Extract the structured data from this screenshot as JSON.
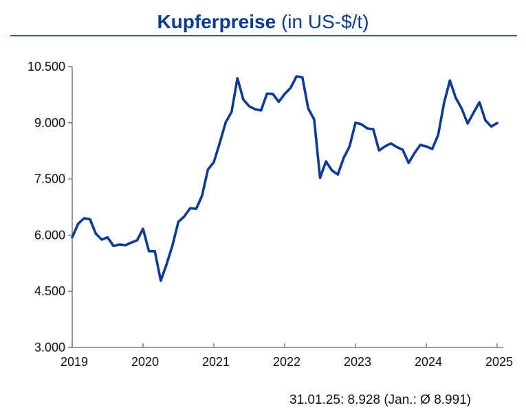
{
  "chart_data": {
    "type": "line",
    "title_bold": "Kupferpreise",
    "title_rest": "(in US-$/t)",
    "xlabel": "",
    "ylabel": "",
    "ylim": [
      3000,
      10500
    ],
    "yticks": [
      "3.000",
      "4.500",
      "6.000",
      "7.500",
      "9.000",
      "10.500"
    ],
    "ytick_values": [
      3000,
      4500,
      6000,
      7500,
      9000,
      10500
    ],
    "xticks": [
      "2019",
      "2020",
      "2021",
      "2022",
      "2023",
      "2024",
      "2025"
    ],
    "x_start": "2019-01",
    "x_end": "2025-01",
    "frequency": "monthly",
    "grid": false,
    "line_color": "#0b3a9a",
    "series": [
      {
        "values": [
          5940,
          6300,
          6450,
          6430,
          6040,
          5880,
          5940,
          5710,
          5750,
          5730,
          5800,
          5860,
          6170,
          5570,
          5570,
          4780,
          5220,
          5730,
          6360,
          6500,
          6720,
          6700,
          7050,
          7750,
          7950,
          8460,
          9010,
          9290,
          10190,
          9620,
          9440,
          9360,
          9330,
          9780,
          9770,
          9560,
          9770,
          9930,
          10240,
          10210,
          9380,
          9090,
          7530,
          7970,
          7730,
          7620,
          8060,
          8370,
          9000,
          8960,
          8850,
          8830,
          8260,
          8370,
          8450,
          8350,
          8280,
          7930,
          8190,
          8410,
          8370,
          8300,
          8670,
          9530,
          10130,
          9660,
          9380,
          8980,
          9270,
          9550,
          9070,
          8900,
          8990
        ]
      }
    ],
    "annotation": "31.01.25: 8.928 (Jan.: Ø 8.991)"
  }
}
